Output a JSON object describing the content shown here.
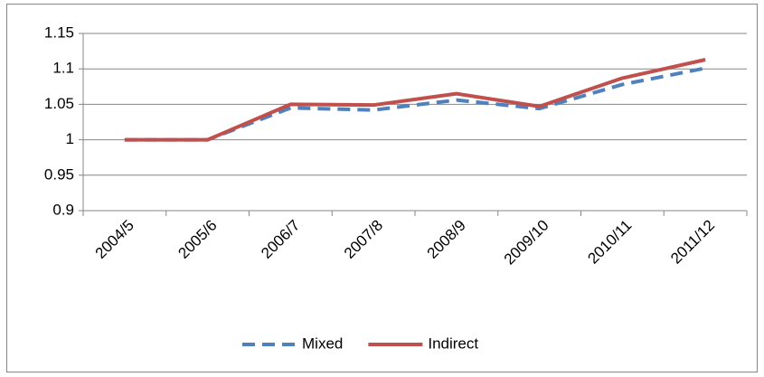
{
  "chart_data": {
    "type": "line",
    "categories": [
      "2004/5",
      "2005/6",
      "2006/7",
      "2007/8",
      "2008/9",
      "2009/10",
      "2010/11",
      "2011/12"
    ],
    "series": [
      {
        "name": "Mixed",
        "color": "#4f81bd",
        "dashed": true,
        "values": [
          1.0,
          1.0,
          1.045,
          1.042,
          1.056,
          1.044,
          1.078,
          1.101
        ]
      },
      {
        "name": "Indirect",
        "color": "#c0504d",
        "dashed": false,
        "values": [
          1.0,
          1.0,
          1.05,
          1.049,
          1.065,
          1.047,
          1.087,
          1.113
        ]
      }
    ],
    "ylim": [
      0.9,
      1.15
    ],
    "yticks": [
      0.9,
      0.95,
      1,
      1.05,
      1.1,
      1.15
    ],
    "grid": true,
    "legend": "bottom"
  }
}
